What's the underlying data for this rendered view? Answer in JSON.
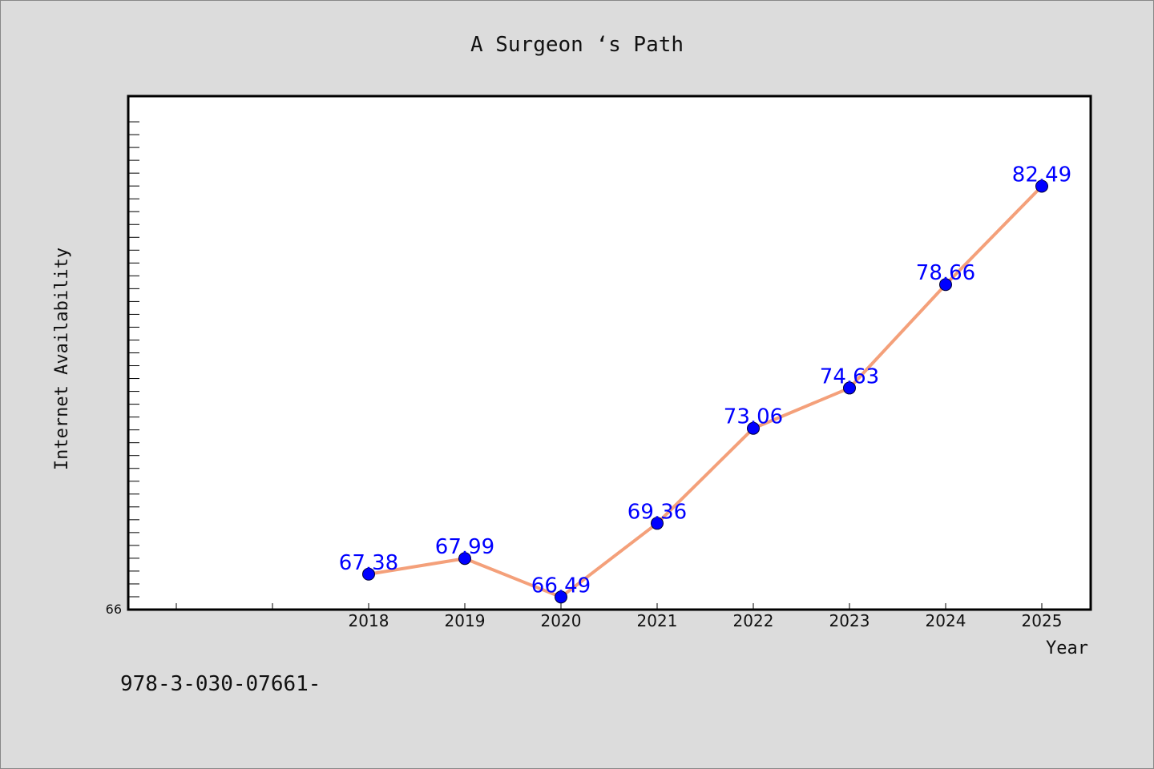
{
  "chart_data": {
    "type": "line",
    "title": "A Surgeon ‘s Path",
    "xlabel": "Year",
    "ylabel": "Internet Availability",
    "x": [
      "2018",
      "2019",
      "2020",
      "2021",
      "2022",
      "2023",
      "2024",
      "2025"
    ],
    "series": [
      {
        "values": [
          67.38,
          67.99,
          66.49,
          69.36,
          73.06,
          74.63,
          78.66,
          82.49
        ],
        "line_color": "#f4a07a",
        "marker_color": "#0000ff",
        "label_color": "#0000ff"
      }
    ],
    "y_tick_labels": [
      "66"
    ],
    "ylim": [
      66,
      86
    ],
    "grid": false,
    "legend": "none"
  },
  "footer": {
    "text": "978-3-030-07661-"
  },
  "colors": {
    "background": "#dcdcdc",
    "plot_background": "#ffffff"
  }
}
